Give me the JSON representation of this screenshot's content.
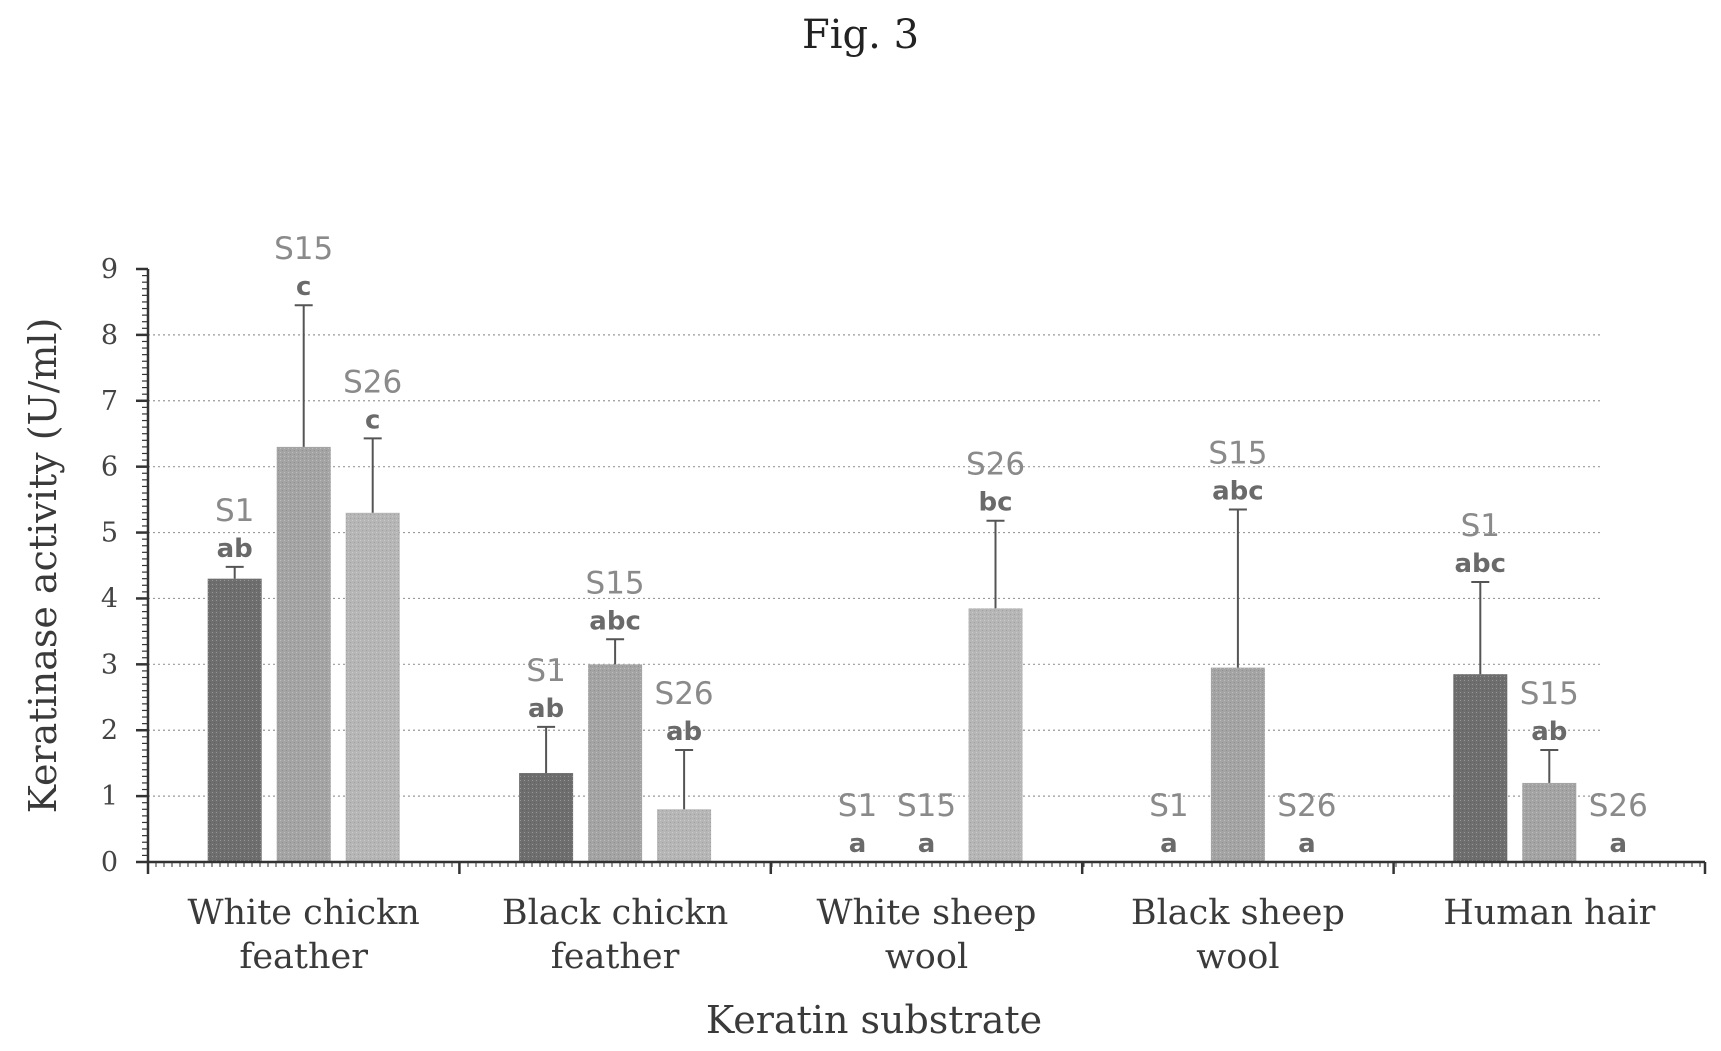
{
  "figure_label": "Fig. 3",
  "colors": {
    "S1": "#6e6e6e",
    "S15": "#a4a4a4",
    "S26": "#b6b6b6",
    "axis": "#333333",
    "grid": "#9a9a9a"
  },
  "chart_data": {
    "type": "bar",
    "title": "",
    "xlabel": "Keratin substrate",
    "ylabel": "Keratinase activity (U/ml)",
    "ylim": [
      0,
      9
    ],
    "yticks": [
      "0",
      "1",
      "2",
      "3",
      "4",
      "5",
      "6",
      "7",
      "8",
      "9"
    ],
    "grid": "horizontal dotted",
    "legend": "none",
    "categories": [
      [
        "White chickn",
        "feather"
      ],
      [
        "Black chickn",
        "feather"
      ],
      [
        "White sheep",
        "wool"
      ],
      [
        "Black sheep",
        "wool"
      ],
      [
        "Human hair"
      ]
    ],
    "series": [
      {
        "name": "S1",
        "values": [
          4.3,
          1.35,
          0,
          0,
          2.85
        ],
        "errors": [
          0.18,
          0.7,
          0,
          0,
          1.4
        ],
        "letters": [
          "ab",
          "ab",
          "a",
          "a",
          "abc"
        ]
      },
      {
        "name": "S15",
        "values": [
          6.3,
          3.0,
          0,
          2.95,
          1.2
        ],
        "errors": [
          2.15,
          0.38,
          0,
          2.4,
          0.5
        ],
        "letters": [
          "c",
          "abc",
          "a",
          "abc",
          "ab"
        ]
      },
      {
        "name": "S26",
        "values": [
          5.3,
          0.8,
          3.85,
          0,
          0
        ],
        "errors": [
          1.13,
          0.9,
          1.33,
          0,
          0
        ],
        "letters": [
          "c",
          "ab",
          "bc",
          "a",
          "a"
        ]
      }
    ]
  }
}
